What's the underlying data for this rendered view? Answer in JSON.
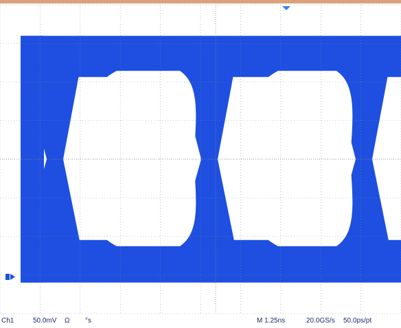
{
  "screen": {
    "type": "oscilloscope eye diagram",
    "trace_color": "#1e4fe0",
    "grid_color": "#8a8a8a",
    "background_color": "#ffffff",
    "top_border_color": "#d9a27a",
    "trigger_marker_color": "#3b82f6",
    "channel_marker_color": "#1e4fe0",
    "grid_divisions": {
      "horizontal": 10,
      "vertical": 8
    },
    "eye": {
      "visible_eye_openings": 2,
      "high_level_div": 3.0,
      "low_level_div": -3.0,
      "eye_height_div": 4.5
    }
  },
  "status": {
    "channel": "Ch1",
    "vertical_scale": "50.0mV",
    "coupling": "Ω",
    "offset": "°s",
    "timebase": "M 1.25ns",
    "sample_rate": "20.0GS/s",
    "resolution": "50.0ps/pt"
  }
}
